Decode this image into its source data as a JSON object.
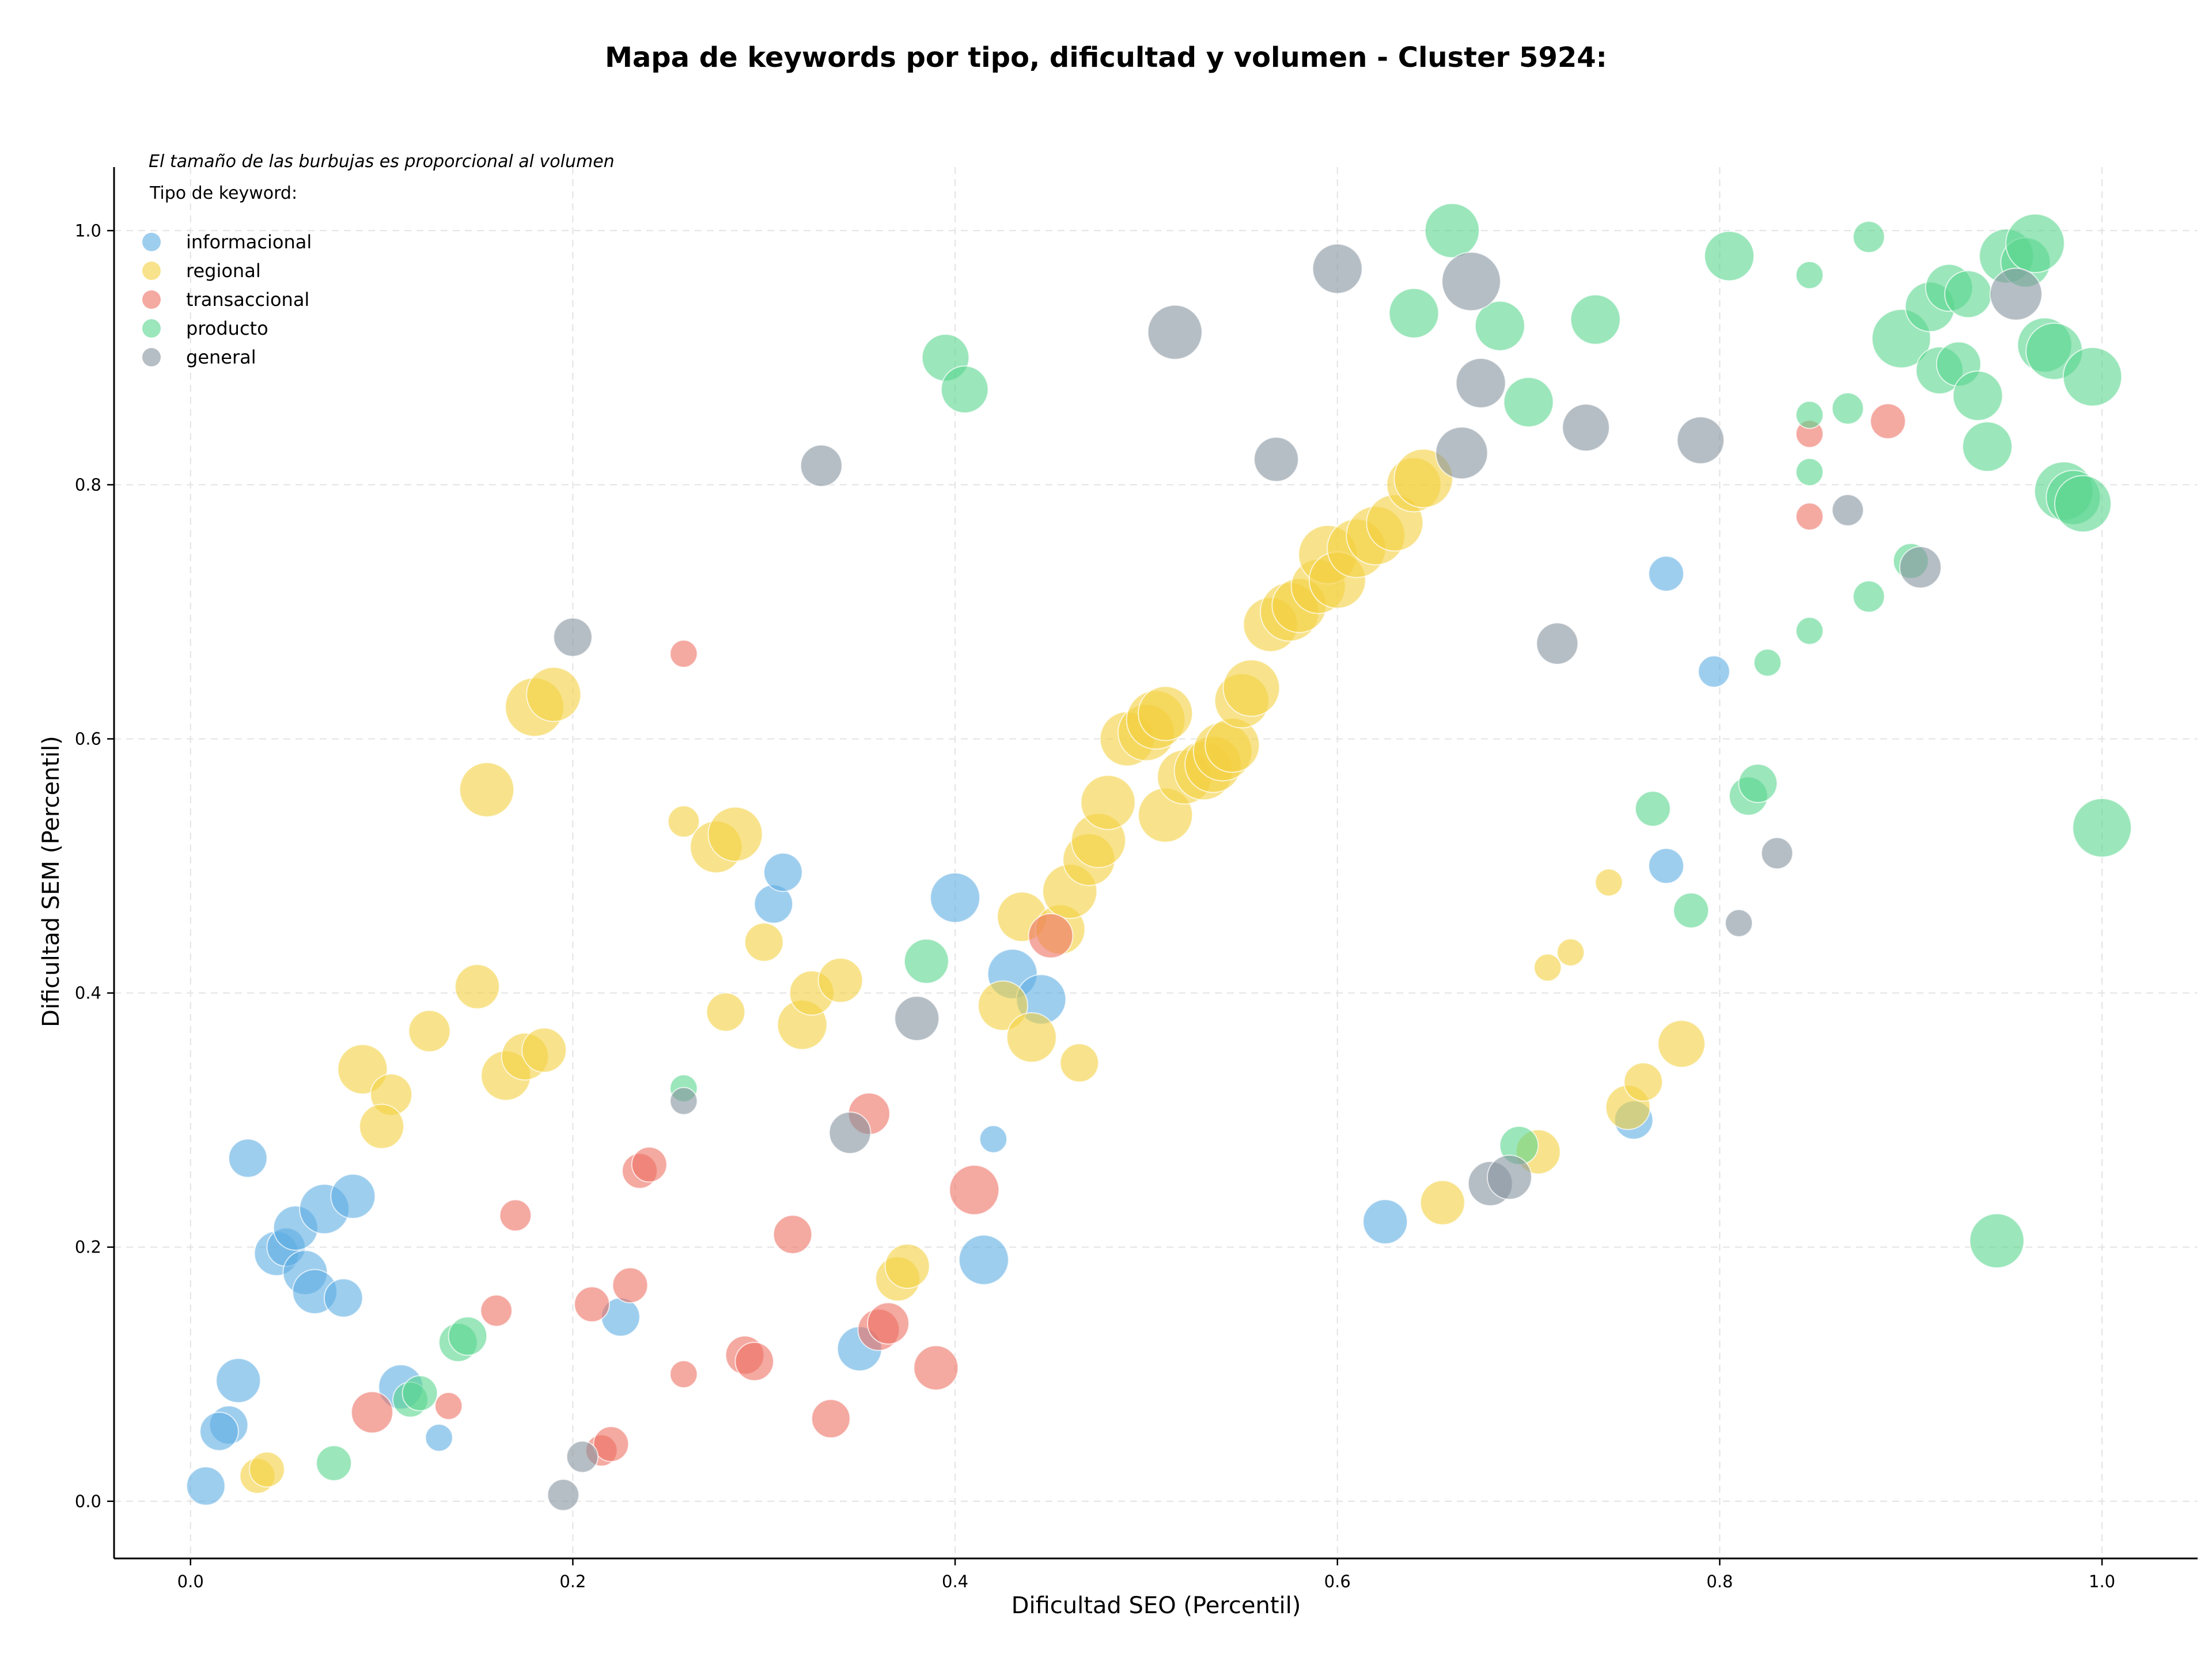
{
  "chart_data": {
    "type": "scatter",
    "title": "Mapa de keywords por tipo, dificultad y volumen - Cluster 5924:",
    "xlabel": "Dificultad SEO (Percentil)",
    "ylabel": "Dificultad SEM (Percentil)",
    "xlim": [
      -0.04,
      1.05
    ],
    "ylim": [
      -0.045,
      1.05
    ],
    "xticks": [
      0.0,
      0.2,
      0.4,
      0.6,
      0.8,
      1.0
    ],
    "yticks": [
      0.0,
      0.2,
      0.4,
      0.6,
      0.8,
      1.0
    ],
    "xtick_labels": [
      "0.0",
      "0.2",
      "0.4",
      "0.6",
      "0.8",
      "1.0"
    ],
    "ytick_labels": [
      "0.0",
      "0.2",
      "0.4",
      "0.6",
      "0.8",
      "1.0"
    ],
    "grid": true,
    "note": "El tamaño de las burbujas es proporcional al volumen",
    "legend_title": "Tipo de keyword:",
    "legend_position": "top-left",
    "size_encodes": "volumen",
    "series": [
      {
        "name": "informacional",
        "color": "#5DADE2",
        "points": [
          [
            0.008,
            0.012,
            3
          ],
          [
            0.03,
            0.27,
            3
          ],
          [
            0.025,
            0.095,
            4
          ],
          [
            0.02,
            0.06,
            3
          ],
          [
            0.015,
            0.055,
            3
          ],
          [
            0.045,
            0.195,
            4
          ],
          [
            0.05,
            0.2,
            3
          ],
          [
            0.055,
            0.215,
            4
          ],
          [
            0.06,
            0.18,
            4
          ],
          [
            0.065,
            0.165,
            4
          ],
          [
            0.07,
            0.23,
            5
          ],
          [
            0.085,
            0.24,
            4
          ],
          [
            0.08,
            0.16,
            3
          ],
          [
            0.11,
            0.09,
            4
          ],
          [
            0.13,
            0.05,
            1.5
          ],
          [
            0.225,
            0.145,
            3
          ],
          [
            0.305,
            0.47,
            3
          ],
          [
            0.31,
            0.495,
            3
          ],
          [
            0.35,
            0.12,
            4
          ],
          [
            0.4,
            0.475,
            5
          ],
          [
            0.415,
            0.19,
            5
          ],
          [
            0.42,
            0.285,
            1.5
          ],
          [
            0.43,
            0.415,
            5
          ],
          [
            0.445,
            0.395,
            5
          ],
          [
            0.625,
            0.22,
            4
          ],
          [
            0.755,
            0.3,
            3
          ],
          [
            0.772,
            0.73,
            2.5
          ],
          [
            0.772,
            0.5,
            2.5
          ],
          [
            0.797,
            0.653,
            2
          ]
        ]
      },
      {
        "name": "regional",
        "color": "#F4D03F",
        "points": [
          [
            0.035,
            0.02,
            2.5
          ],
          [
            0.04,
            0.025,
            2.5
          ],
          [
            0.09,
            0.34,
            5
          ],
          [
            0.105,
            0.32,
            3.5
          ],
          [
            0.1,
            0.295,
            4
          ],
          [
            0.125,
            0.37,
            3.5
          ],
          [
            0.15,
            0.405,
            4
          ],
          [
            0.155,
            0.56,
            6
          ],
          [
            0.165,
            0.335,
            5
          ],
          [
            0.175,
            0.35,
            4.5
          ],
          [
            0.185,
            0.355,
            4
          ],
          [
            0.18,
            0.625,
            7
          ],
          [
            0.19,
            0.635,
            6
          ],
          [
            0.258,
            0.535,
            2
          ],
          [
            0.275,
            0.515,
            5.5
          ],
          [
            0.285,
            0.525,
            6
          ],
          [
            0.28,
            0.385,
            3
          ],
          [
            0.3,
            0.44,
            3
          ],
          [
            0.32,
            0.375,
            5
          ],
          [
            0.325,
            0.4,
            4
          ],
          [
            0.34,
            0.41,
            4
          ],
          [
            0.37,
            0.175,
            4
          ],
          [
            0.375,
            0.185,
            4
          ],
          [
            0.425,
            0.39,
            5
          ],
          [
            0.435,
            0.46,
            5
          ],
          [
            0.44,
            0.365,
            5
          ],
          [
            0.455,
            0.45,
            5
          ],
          [
            0.465,
            0.345,
            3
          ],
          [
            0.46,
            0.48,
            6
          ],
          [
            0.47,
            0.505,
            5.5
          ],
          [
            0.475,
            0.52,
            6
          ],
          [
            0.48,
            0.55,
            6
          ],
          [
            0.49,
            0.6,
            6
          ],
          [
            0.5,
            0.605,
            6.5
          ],
          [
            0.505,
            0.615,
            7
          ],
          [
            0.51,
            0.62,
            6
          ],
          [
            0.51,
            0.54,
            6
          ],
          [
            0.52,
            0.57,
            6
          ],
          [
            0.53,
            0.575,
            7
          ],
          [
            0.535,
            0.58,
            6.5
          ],
          [
            0.54,
            0.59,
            7
          ],
          [
            0.545,
            0.595,
            6
          ],
          [
            0.55,
            0.63,
            6
          ],
          [
            0.555,
            0.64,
            6.5
          ],
          [
            0.565,
            0.69,
            6
          ],
          [
            0.575,
            0.7,
            7
          ],
          [
            0.58,
            0.705,
            6
          ],
          [
            0.59,
            0.72,
            6
          ],
          [
            0.595,
            0.745,
            7
          ],
          [
            0.6,
            0.725,
            6.5
          ],
          [
            0.61,
            0.75,
            7
          ],
          [
            0.62,
            0.76,
            7
          ],
          [
            0.63,
            0.77,
            6.5
          ],
          [
            0.64,
            0.8,
            6
          ],
          [
            0.645,
            0.805,
            7
          ],
          [
            0.655,
            0.235,
            4
          ],
          [
            0.705,
            0.275,
            4
          ],
          [
            0.71,
            0.42,
            1.5
          ],
          [
            0.722,
            0.432,
            1.5
          ],
          [
            0.742,
            0.487,
            1.5
          ],
          [
            0.752,
            0.31,
            4
          ],
          [
            0.76,
            0.33,
            3
          ],
          [
            0.78,
            0.36,
            4.5
          ]
        ]
      },
      {
        "name": "transaccional",
        "color": "#EC7063",
        "points": [
          [
            0.095,
            0.07,
            3.5
          ],
          [
            0.135,
            0.075,
            1.5
          ],
          [
            0.16,
            0.15,
            2
          ],
          [
            0.17,
            0.225,
            2
          ],
          [
            0.21,
            0.155,
            2.5
          ],
          [
            0.215,
            0.04,
            2
          ],
          [
            0.22,
            0.045,
            2.5
          ],
          [
            0.23,
            0.17,
            2.5
          ],
          [
            0.235,
            0.26,
            2.5
          ],
          [
            0.24,
            0.265,
            2.5
          ],
          [
            0.258,
            0.1,
            1.5
          ],
          [
            0.258,
            0.667,
            1.5
          ],
          [
            0.29,
            0.115,
            3
          ],
          [
            0.295,
            0.11,
            3
          ],
          [
            0.315,
            0.21,
            3
          ],
          [
            0.335,
            0.065,
            3
          ],
          [
            0.355,
            0.305,
            3.5
          ],
          [
            0.36,
            0.135,
            3.5
          ],
          [
            0.365,
            0.14,
            3.5
          ],
          [
            0.39,
            0.105,
            4
          ],
          [
            0.41,
            0.245,
            5
          ],
          [
            0.45,
            0.445,
            4
          ],
          [
            0.847,
            0.84,
            1.5
          ],
          [
            0.847,
            0.775,
            1.5
          ],
          [
            0.888,
            0.85,
            2.5
          ]
        ]
      },
      {
        "name": "producto",
        "color": "#58D68D",
        "points": [
          [
            0.075,
            0.03,
            2.5
          ],
          [
            0.115,
            0.08,
            2.5
          ],
          [
            0.12,
            0.085,
            2.5
          ],
          [
            0.14,
            0.125,
            3
          ],
          [
            0.145,
            0.13,
            3
          ],
          [
            0.258,
            0.325,
            1.5
          ],
          [
            0.385,
            0.425,
            4
          ],
          [
            0.395,
            0.9,
            4.5
          ],
          [
            0.405,
            0.875,
            4.5
          ],
          [
            0.64,
            0.935,
            5
          ],
          [
            0.66,
            1.0,
            6
          ],
          [
            0.685,
            0.925,
            5
          ],
          [
            0.7,
            0.865,
            5
          ],
          [
            0.735,
            0.93,
            5
          ],
          [
            0.695,
            0.28,
            3
          ],
          [
            0.765,
            0.545,
            2.5
          ],
          [
            0.785,
            0.465,
            2.5
          ],
          [
            0.805,
            0.98,
            5
          ],
          [
            0.815,
            0.555,
            3
          ],
          [
            0.82,
            0.565,
            3
          ],
          [
            0.825,
            0.66,
            1.5
          ],
          [
            0.847,
            0.965,
            1.5
          ],
          [
            0.847,
            0.855,
            1.5
          ],
          [
            0.847,
            0.81,
            1.5
          ],
          [
            0.847,
            0.685,
            1.5
          ],
          [
            0.867,
            0.86,
            2
          ],
          [
            0.878,
            0.995,
            2
          ],
          [
            0.878,
            0.712,
            2
          ],
          [
            0.9,
            0.74,
            2.5
          ],
          [
            0.895,
            0.915,
            7
          ],
          [
            0.91,
            0.94,
            5
          ],
          [
            0.915,
            0.89,
            4.5
          ],
          [
            0.92,
            0.955,
            4.5
          ],
          [
            0.925,
            0.895,
            4
          ],
          [
            0.93,
            0.95,
            4.5
          ],
          [
            0.935,
            0.87,
            5
          ],
          [
            0.94,
            0.83,
            5
          ],
          [
            0.945,
            0.205,
            6
          ],
          [
            0.95,
            0.98,
            6
          ],
          [
            0.96,
            0.975,
            5
          ],
          [
            0.965,
            0.99,
            7
          ],
          [
            0.97,
            0.91,
            6
          ],
          [
            0.975,
            0.905,
            6.5
          ],
          [
            0.98,
            0.795,
            7
          ],
          [
            0.985,
            0.79,
            6
          ],
          [
            0.99,
            0.785,
            6.5
          ],
          [
            0.995,
            0.885,
            7
          ],
          [
            1.0,
            0.53,
            7
          ]
        ]
      },
      {
        "name": "general",
        "color": "#85929E",
        "points": [
          [
            0.195,
            0.005,
            2
          ],
          [
            0.2,
            0.68,
            3
          ],
          [
            0.205,
            0.035,
            2
          ],
          [
            0.258,
            0.315,
            1.5
          ],
          [
            0.33,
            0.815,
            3.5
          ],
          [
            0.345,
            0.29,
            3.5
          ],
          [
            0.38,
            0.38,
            4
          ],
          [
            0.515,
            0.92,
            6
          ],
          [
            0.568,
            0.82,
            4
          ],
          [
            0.6,
            0.97,
            5
          ],
          [
            0.665,
            0.825,
            5.5
          ],
          [
            0.67,
            0.96,
            7
          ],
          [
            0.675,
            0.88,
            5
          ],
          [
            0.68,
            0.25,
            4
          ],
          [
            0.69,
            0.255,
            4
          ],
          [
            0.715,
            0.675,
            3.5
          ],
          [
            0.73,
            0.845,
            4.5
          ],
          [
            0.79,
            0.835,
            4.5
          ],
          [
            0.81,
            0.455,
            1.5
          ],
          [
            0.83,
            0.51,
            2
          ],
          [
            0.867,
            0.78,
            2
          ],
          [
            0.905,
            0.735,
            3.5
          ],
          [
            0.955,
            0.95,
            5.5
          ]
        ]
      }
    ]
  }
}
